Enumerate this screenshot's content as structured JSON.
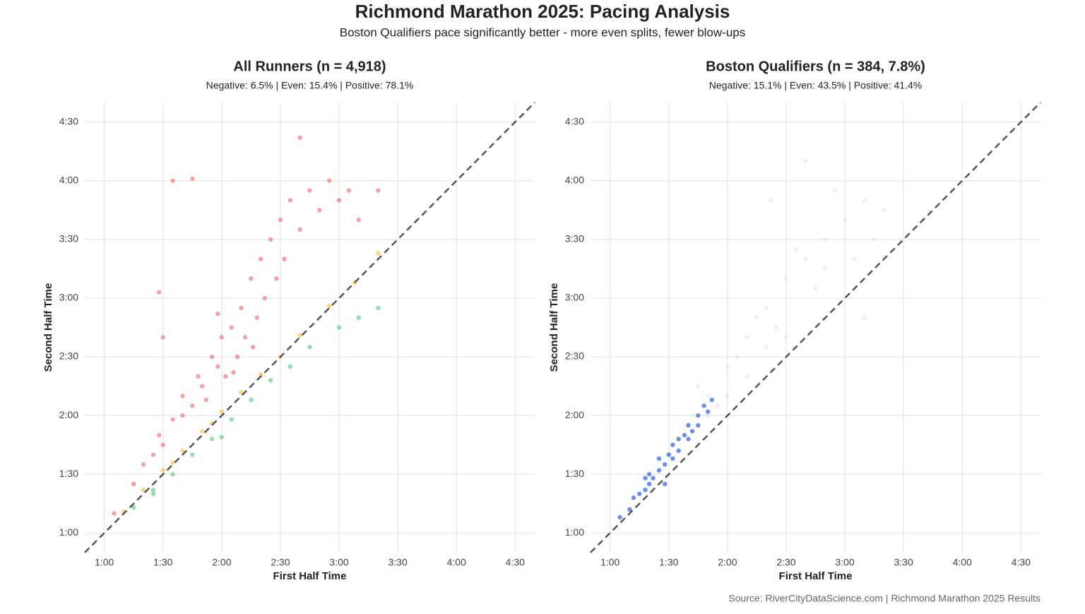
{
  "figure": {
    "title": "Richmond Marathon 2025: Pacing Analysis",
    "subtitle": "Boston Qualifiers pace significantly better - more even splits, fewer blow-ups",
    "source": "Source: RiverCityDataScience.com | Richmond Marathon 2025 Results"
  },
  "chart_data": [
    {
      "type": "scatter",
      "title": "All Runners (n = 4,918)",
      "subtitle": "Negative: 6.5% | Even: 15.4% | Positive: 78.1%",
      "xlabel": "First Half Time",
      "ylabel": "Second Half Time",
      "xlim": [
        50,
        280
      ],
      "ylim": [
        50,
        280
      ],
      "grid": true,
      "xticks": [
        {
          "value": 60,
          "label": "1:00"
        },
        {
          "value": 90,
          "label": "1:30"
        },
        {
          "value": 120,
          "label": "2:00"
        },
        {
          "value": 150,
          "label": "2:30"
        },
        {
          "value": 180,
          "label": "3:00"
        },
        {
          "value": 210,
          "label": "3:30"
        },
        {
          "value": 240,
          "label": "4:00"
        },
        {
          "value": 270,
          "label": "4:30"
        }
      ],
      "yticks": [
        {
          "value": 60,
          "label": "1:00"
        },
        {
          "value": 90,
          "label": "1:30"
        },
        {
          "value": 120,
          "label": "2:00"
        },
        {
          "value": 150,
          "label": "2:30"
        },
        {
          "value": 180,
          "label": "3:00"
        },
        {
          "value": 210,
          "label": "3:30"
        },
        {
          "value": 240,
          "label": "4:00"
        },
        {
          "value": 270,
          "label": "4:30"
        }
      ],
      "series": [
        {
          "color": "#e8474b",
          "opacity": 0.5,
          "x": [
            65,
            75,
            80,
            85,
            88,
            90,
            95,
            100,
            100,
            105,
            108,
            110,
            115,
            118,
            120,
            122,
            125,
            128,
            130,
            132,
            135,
            138,
            140,
            142,
            145,
            148,
            150,
            152,
            155,
            160,
            165,
            170,
            175,
            180,
            185,
            190,
            200,
            88,
            95,
            105,
            90,
            118,
            160,
            112,
            126,
            136
          ],
          "y": [
            70,
            85,
            95,
            100,
            110,
            105,
            118,
            120,
            130,
            125,
            140,
            135,
            150,
            145,
            160,
            140,
            165,
            150,
            175,
            160,
            190,
            170,
            200,
            180,
            210,
            190,
            220,
            200,
            230,
            215,
            235,
            225,
            240,
            230,
            235,
            220,
            235,
            183,
            240,
            241,
            160,
            172,
            262,
            128,
            142,
            155
          ]
        },
        {
          "color": "#f5bd2c",
          "opacity": 0.6,
          "x": [
            70,
            80,
            90,
            100,
            110,
            120,
            130,
            140,
            150,
            160,
            175,
            188,
            200,
            95,
            115
          ],
          "y": [
            71,
            82,
            92,
            102,
            112,
            122,
            132,
            141,
            150,
            161,
            176,
            188,
            203,
            96,
            116
          ]
        },
        {
          "color": "#2bbf5a",
          "opacity": 0.5,
          "x": [
            75,
            85,
            95,
            105,
            115,
            125,
            135,
            145,
            155,
            165,
            180,
            190,
            200,
            120,
            85
          ],
          "y": [
            73,
            80,
            90,
            100,
            108,
            118,
            128,
            138,
            145,
            155,
            165,
            170,
            175,
            109,
            82
          ]
        }
      ]
    },
    {
      "type": "scatter",
      "title": "Boston Qualifiers (n = 384, 7.8%)",
      "subtitle": "Negative: 15.1% | Even: 43.5% | Positive: 41.4%",
      "xlabel": "First Half Time",
      "ylabel": "Second Half Time",
      "xlim": [
        50,
        280
      ],
      "ylim": [
        50,
        280
      ],
      "grid": true,
      "xticks": [
        {
          "value": 60,
          "label": "1:00"
        },
        {
          "value": 90,
          "label": "1:30"
        },
        {
          "value": 120,
          "label": "2:00"
        },
        {
          "value": 150,
          "label": "2:30"
        },
        {
          "value": 180,
          "label": "3:00"
        },
        {
          "value": 210,
          "label": "3:30"
        },
        {
          "value": 240,
          "label": "4:00"
        },
        {
          "value": 270,
          "label": "4:30"
        }
      ],
      "yticks": [
        {
          "value": 60,
          "label": "1:00"
        },
        {
          "value": 90,
          "label": "1:30"
        },
        {
          "value": 120,
          "label": "2:00"
        },
        {
          "value": 150,
          "label": "2:30"
        },
        {
          "value": 180,
          "label": "3:00"
        },
        {
          "value": 210,
          "label": "3:30"
        },
        {
          "value": 240,
          "label": "4:00"
        },
        {
          "value": 270,
          "label": "4:30"
        }
      ],
      "series": [
        {
          "color": "#cccccc",
          "opacity": 0.3,
          "x": [
            90,
            100,
            110,
            120,
            130,
            140,
            150,
            160,
            170,
            180,
            190,
            200,
            115,
            125,
            135,
            145,
            155,
            165,
            175,
            185,
            195,
            150,
            130,
            120,
            110,
            142,
            160,
            190,
            140,
            170,
            105
          ],
          "y": [
            100,
            115,
            130,
            145,
            160,
            175,
            190,
            200,
            210,
            220,
            230,
            225,
            125,
            150,
            170,
            165,
            205,
            185,
            235,
            200,
            210,
            160,
            140,
            130,
            120,
            230,
            250,
            170,
            155,
            195,
            135
          ]
        },
        {
          "color": "#2f62e0",
          "opacity": 0.7,
          "x": [
            65,
            70,
            72,
            75,
            78,
            80,
            80,
            82,
            85,
            85,
            88,
            90,
            92,
            92,
            95,
            95,
            98,
            100,
            100,
            102,
            105,
            105,
            108,
            110,
            112,
            88,
            78
          ],
          "y": [
            68,
            72,
            78,
            80,
            82,
            85,
            90,
            88,
            92,
            98,
            95,
            100,
            98,
            105,
            108,
            102,
            110,
            108,
            115,
            112,
            120,
            115,
            125,
            122,
            128,
            85,
            88
          ]
        }
      ]
    }
  ]
}
